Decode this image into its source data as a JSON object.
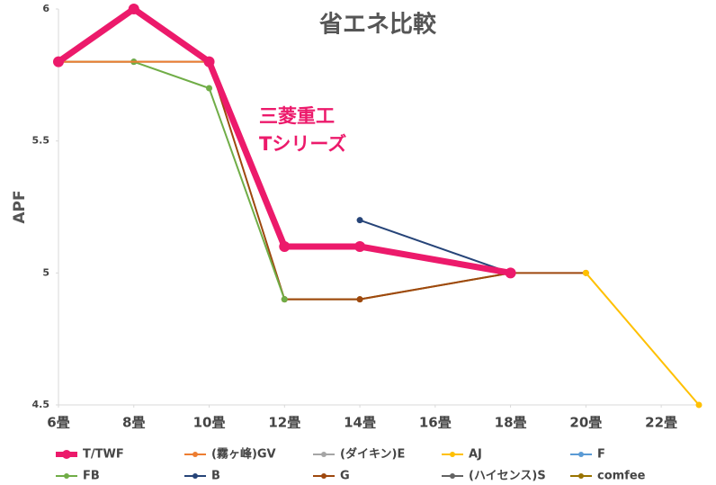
{
  "chart_data": {
    "type": "line",
    "title": "省エネ比較",
    "ylabel": "APF",
    "annotations": [
      "三菱重工",
      "Tシリーズ"
    ],
    "xlim": [
      6,
      23
    ],
    "xticks": [
      {
        "value": 6,
        "label": "6畳"
      },
      {
        "value": 8,
        "label": "8畳"
      },
      {
        "value": 10,
        "label": "10畳"
      },
      {
        "value": 12,
        "label": "12畳"
      },
      {
        "value": 14,
        "label": "14畳"
      },
      {
        "value": 16,
        "label": "16畳"
      },
      {
        "value": 18,
        "label": "18畳"
      },
      {
        "value": 20,
        "label": "20畳"
      },
      {
        "value": 22,
        "label": "22畳"
      }
    ],
    "ylim": [
      4.5,
      6
    ],
    "yticks": [
      4.5,
      5,
      5.5,
      6
    ],
    "grid": false,
    "series": [
      {
        "name": "T/TWF",
        "color": "#ec1a6b",
        "x": [
          6,
          8,
          10,
          12,
          14,
          18
        ],
        "values": [
          5.8,
          6.0,
          5.8,
          5.1,
          5.1,
          5.0
        ]
      },
      {
        "name": "(霧ヶ峰)GV",
        "color": "#ed7d31",
        "x": [
          6,
          10
        ],
        "values": [
          5.8,
          5.8
        ]
      },
      {
        "name": "(ダイキン)E",
        "color": "#a5a5a5",
        "x": [
          18
        ],
        "values": [
          5.0
        ]
      },
      {
        "name": "AJ",
        "color": "#ffc000",
        "x": [
          20,
          23
        ],
        "values": [
          5.0,
          4.5
        ]
      },
      {
        "name": "F",
        "color": "#5b9bd5",
        "x": [
          18
        ],
        "values": [
          5.0
        ]
      },
      {
        "name": "FB",
        "color": "#70ad47",
        "x": [
          6,
          8,
          10,
          12
        ],
        "values": [
          5.8,
          5.8,
          5.7,
          4.9
        ]
      },
      {
        "name": "B",
        "color": "#264478",
        "x": [
          14,
          18
        ],
        "values": [
          5.2,
          5.0
        ]
      },
      {
        "name": "G",
        "color": "#9e480e",
        "x": [
          10,
          12,
          14,
          18,
          20
        ],
        "values": [
          5.8,
          4.9,
          4.9,
          5.0,
          5.0
        ]
      },
      {
        "name": "(ハイセンス)S",
        "color": "#636363",
        "x": [
          6,
          8,
          10
        ],
        "values": [
          5.8,
          5.8,
          5.8
        ]
      },
      {
        "name": "comfee",
        "color": "#997300",
        "x": [
          12,
          14,
          18
        ],
        "values": [
          4.9,
          4.9,
          5.0
        ]
      }
    ]
  }
}
